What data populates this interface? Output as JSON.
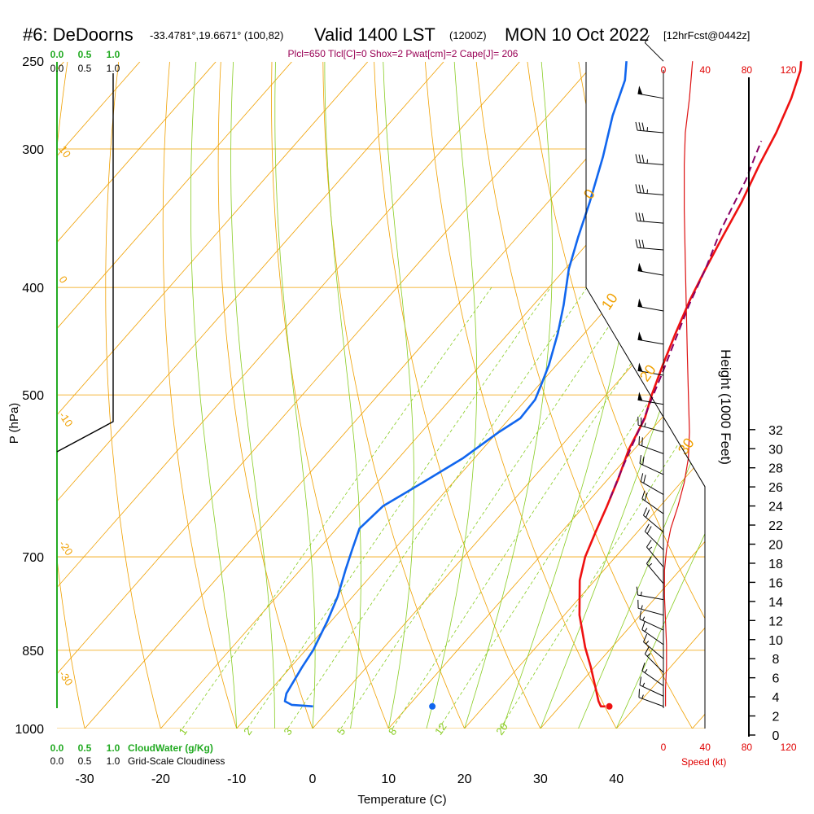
{
  "chart_data": {
    "type": "line",
    "title": {
      "station": "#6: DeDoorns",
      "coords": "-33.4781°,19.6671° (100,82)",
      "valid": "Valid 1400 LST",
      "zulu": "(1200Z)",
      "date": "MON 10 Oct 2022",
      "forecast": "[12hrFcst@0442z]"
    },
    "params": "Plcl=650 Tlcl[C]=0 Shox=2 Pwat[cm]=2 Cape[J]= 206",
    "xlabel": "Temperature (C)",
    "ylabel": "P (hPa)",
    "ylabel_right": "Height (1000 Feet)",
    "x_ticks": [
      "-30",
      "-20",
      "-10",
      "0",
      "10",
      "20",
      "30",
      "40"
    ],
    "x_tick_values": [
      -30,
      -20,
      -10,
      0,
      10,
      20,
      30,
      40
    ],
    "y_ticks": [
      "250",
      "300",
      "400",
      "500",
      "700",
      "850",
      "1000"
    ],
    "y_tick_values": [
      250,
      300,
      400,
      500,
      700,
      850,
      1000
    ],
    "height_ticks": [
      "0",
      "2",
      "4",
      "6",
      "8",
      "10",
      "12",
      "14",
      "16",
      "18",
      "20",
      "22",
      "24",
      "26",
      "28",
      "30",
      "32"
    ],
    "speed_ticks": [
      "0",
      "40",
      "80",
      "120"
    ],
    "speed_label": "Speed (kt)",
    "cloudwater_ticks": [
      "0.0",
      "0.5",
      "1.0"
    ],
    "cloudwater_label": "CloudWater (g/Kg)",
    "cloudiness_ticks": [
      "0.0",
      "0.5",
      "1.0"
    ],
    "cloudiness_label": "Grid-Scale Cloudiness",
    "mixing_ratio_labels": [
      "1",
      "2",
      "3",
      "5",
      "8",
      "12",
      "20"
    ],
    "mixing_ratio_values": [
      1,
      2,
      3,
      5,
      8,
      12,
      20
    ],
    "dry_adiabat_labels": [
      "10",
      "0",
      "-10",
      "-20",
      "-30"
    ],
    "moist_adiabat_labels": [
      "0",
      "10",
      "20",
      "30"
    ],
    "series": [
      {
        "name": "Temperature",
        "color": "#ee1111",
        "points": [
          [
            36.0,
            955
          ],
          [
            35.4,
            955
          ],
          [
            34.5,
            945
          ],
          [
            33.0,
            925
          ],
          [
            29.5,
            880
          ],
          [
            26.5,
            845
          ],
          [
            22.0,
            790
          ],
          [
            18.0,
            735
          ],
          [
            16.0,
            700
          ],
          [
            14.5,
            665
          ],
          [
            13.0,
            630
          ],
          [
            11.3,
            595
          ],
          [
            9.3,
            560
          ],
          [
            7.8,
            525
          ],
          [
            6.0,
            500
          ],
          [
            4.0,
            470
          ],
          [
            2.0,
            440
          ],
          [
            0.0,
            410
          ],
          [
            -1.5,
            385
          ],
          [
            -3.0,
            360
          ],
          [
            -4.5,
            335
          ],
          [
            -6.5,
            310
          ],
          [
            -8.0,
            290
          ],
          [
            -10.0,
            270
          ],
          [
            -12.0,
            255
          ],
          [
            -13.0,
            250
          ]
        ]
      },
      {
        "name": "Dewpoint",
        "color": "#1166ee",
        "points": [
          [
            -2.5,
            955
          ],
          [
            -5.5,
            952
          ],
          [
            -6.8,
            945
          ],
          [
            -7.5,
            930
          ],
          [
            -8.5,
            880
          ],
          [
            -9.0,
            850
          ],
          [
            -10.5,
            800
          ],
          [
            -12.0,
            760
          ],
          [
            -14.0,
            720
          ],
          [
            -15.5,
            690
          ],
          [
            -17.0,
            660
          ],
          [
            -16.5,
            630
          ],
          [
            -14.0,
            600
          ],
          [
            -11.5,
            570
          ],
          [
            -9.8,
            540
          ],
          [
            -8.6,
            525
          ],
          [
            -8.8,
            505
          ],
          [
            -9.7,
            490
          ],
          [
            -11.0,
            470
          ],
          [
            -13.5,
            440
          ],
          [
            -16.0,
            415
          ],
          [
            -19.5,
            385
          ],
          [
            -22.0,
            360
          ],
          [
            -24.5,
            335
          ],
          [
            -28.0,
            305
          ],
          [
            -31.5,
            280
          ],
          [
            -34.0,
            260
          ],
          [
            -36.0,
            250
          ]
        ]
      },
      {
        "name": "Parcel",
        "color": "#880066",
        "dashed": true,
        "points": [
          [
            12.5,
            620
          ],
          [
            11.0,
            590
          ],
          [
            9.5,
            560
          ],
          [
            8.0,
            530
          ],
          [
            6.5,
            505
          ],
          [
            5.0,
            480
          ],
          [
            3.0,
            450
          ],
          [
            0.5,
            415
          ],
          [
            -1.5,
            385
          ],
          [
            -4.0,
            355
          ],
          [
            -6.5,
            320
          ],
          [
            -8.0,
            305
          ],
          [
            -9.0,
            295
          ]
        ]
      }
    ],
    "surface_points": [
      {
        "name": "surface-temperature",
        "t": 36.5,
        "p": 955,
        "color": "#ee1111"
      },
      {
        "name": "surface-dewpoint",
        "t": 13.2,
        "p": 955,
        "color": "#1166ee"
      }
    ],
    "wind_barbs": [
      {
        "p": 250,
        "dir": 315,
        "kt": 10
      },
      {
        "p": 270,
        "dir": 280,
        "kt": 50
      },
      {
        "p": 290,
        "dir": 275,
        "kt": 35
      },
      {
        "p": 310,
        "dir": 275,
        "kt": 35
      },
      {
        "p": 330,
        "dir": 275,
        "kt": 35
      },
      {
        "p": 350,
        "dir": 275,
        "kt": 30
      },
      {
        "p": 370,
        "dir": 275,
        "kt": 30
      },
      {
        "p": 390,
        "dir": 280,
        "kt": 50
      },
      {
        "p": 420,
        "dir": 280,
        "kt": 50
      },
      {
        "p": 450,
        "dir": 280,
        "kt": 50
      },
      {
        "p": 480,
        "dir": 280,
        "kt": 50
      },
      {
        "p": 510,
        "dir": 280,
        "kt": 50
      },
      {
        "p": 540,
        "dir": 285,
        "kt": 25
      },
      {
        "p": 565,
        "dir": 290,
        "kt": 20
      },
      {
        "p": 590,
        "dir": 295,
        "kt": 20
      },
      {
        "p": 615,
        "dir": 300,
        "kt": 20
      },
      {
        "p": 640,
        "dir": 305,
        "kt": 20
      },
      {
        "p": 665,
        "dir": 310,
        "kt": 20
      },
      {
        "p": 690,
        "dir": 315,
        "kt": 20
      },
      {
        "p": 715,
        "dir": 320,
        "kt": 15
      },
      {
        "p": 740,
        "dir": 320,
        "kt": 15
      },
      {
        "p": 765,
        "dir": 280,
        "kt": 15
      },
      {
        "p": 790,
        "dir": 285,
        "kt": 15
      },
      {
        "p": 815,
        "dir": 295,
        "kt": 15
      },
      {
        "p": 840,
        "dir": 305,
        "kt": 15
      },
      {
        "p": 865,
        "dir": 310,
        "kt": 15
      },
      {
        "p": 890,
        "dir": 315,
        "kt": 15
      },
      {
        "p": 915,
        "dir": 305,
        "kt": 15
      },
      {
        "p": 935,
        "dir": 295,
        "kt": 15
      },
      {
        "p": 955,
        "dir": 290,
        "kt": 15
      }
    ],
    "wind_speed_profile": [
      [
        250,
        28
      ],
      [
        270,
        25
      ],
      [
        290,
        21
      ],
      [
        310,
        20
      ],
      [
        340,
        20
      ],
      [
        380,
        21
      ],
      [
        420,
        22
      ],
      [
        460,
        23
      ],
      [
        500,
        24
      ],
      [
        540,
        25
      ],
      [
        570,
        24
      ],
      [
        600,
        20
      ],
      [
        630,
        14
      ],
      [
        660,
        7
      ],
      [
        690,
        3
      ],
      [
        720,
        1
      ],
      [
        760,
        1
      ],
      [
        800,
        2
      ],
      [
        840,
        3
      ],
      [
        880,
        3
      ],
      [
        920,
        2
      ],
      [
        955,
        2
      ]
    ],
    "colors": {
      "isotherm": "#f0a000",
      "isobar": "#f0a000",
      "mixing_ratio": "#88cc22",
      "moist_adiabat": "#88cc22",
      "cloud": "#22aa22"
    }
  }
}
